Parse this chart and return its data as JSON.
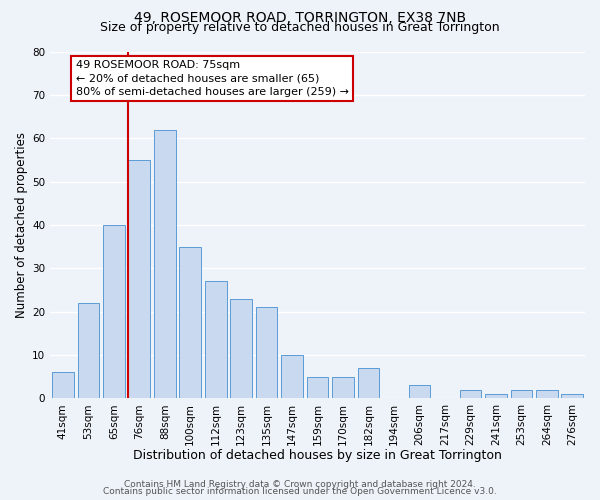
{
  "title": "49, ROSEMOOR ROAD, TORRINGTON, EX38 7NB",
  "subtitle": "Size of property relative to detached houses in Great Torrington",
  "xlabel": "Distribution of detached houses by size in Great Torrington",
  "ylabel": "Number of detached properties",
  "bar_labels": [
    "41sqm",
    "53sqm",
    "65sqm",
    "76sqm",
    "88sqm",
    "100sqm",
    "112sqm",
    "123sqm",
    "135sqm",
    "147sqm",
    "159sqm",
    "170sqm",
    "182sqm",
    "194sqm",
    "206sqm",
    "217sqm",
    "229sqm",
    "241sqm",
    "253sqm",
    "264sqm",
    "276sqm"
  ],
  "bar_values": [
    6,
    22,
    40,
    55,
    62,
    35,
    27,
    23,
    21,
    10,
    5,
    5,
    7,
    0,
    3,
    0,
    2,
    1,
    2,
    2,
    1
  ],
  "bar_color": "#c9d9f0",
  "bar_edge_color": "#5b9bd5",
  "vline_color": "#cc0000",
  "vline_x_index": 3,
  "ylim": [
    0,
    80
  ],
  "yticks": [
    0,
    10,
    20,
    30,
    40,
    50,
    60,
    70,
    80
  ],
  "annotation_text": "49 ROSEMOOR ROAD: 75sqm\n← 20% of detached houses are smaller (65)\n80% of semi-detached houses are larger (259) →",
  "annotation_box_facecolor": "#ffffff",
  "annotation_box_edgecolor": "#cc0000",
  "footer1": "Contains HM Land Registry data © Crown copyright and database right 2024.",
  "footer2": "Contains public sector information licensed under the Open Government Licence v3.0.",
  "bg_color": "#eef2f9",
  "grid_color": "#ffffff",
  "title_fontsize": 10,
  "subtitle_fontsize": 9,
  "xlabel_fontsize": 9,
  "ylabel_fontsize": 8.5,
  "tick_fontsize": 7.5,
  "annot_fontsize": 8,
  "footer_fontsize": 6.5
}
